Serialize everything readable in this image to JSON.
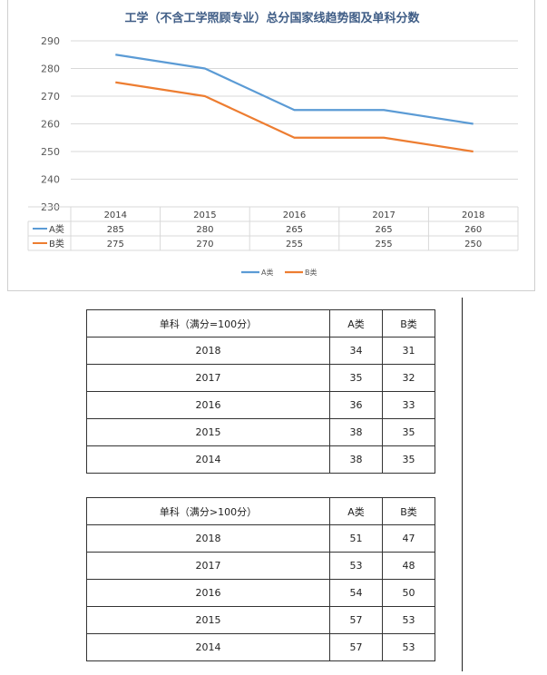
{
  "chart_data": {
    "type": "line",
    "title": "工学（不含工学照顾专业）总分国家线趋势图及单科分数",
    "categories": [
      "2014",
      "2015",
      "2016",
      "2017",
      "2018"
    ],
    "series": [
      {
        "name": "A类",
        "values": [
          285,
          280,
          265,
          265,
          260
        ],
        "color": "#5b9bd5"
      },
      {
        "name": "B类",
        "values": [
          275,
          270,
          255,
          255,
          250
        ],
        "color": "#ed7d31"
      }
    ],
    "ylim": [
      230,
      290
    ],
    "yticks": [
      "290",
      "280",
      "270",
      "260",
      "250",
      "240",
      "230"
    ],
    "grid": true,
    "legend": "bottom",
    "data_table": true
  },
  "table1": {
    "headers": [
      "单科（满分=100分）",
      "A类",
      "B类"
    ],
    "rows": [
      [
        "2018",
        "34",
        "31"
      ],
      [
        "2017",
        "35",
        "32"
      ],
      [
        "2016",
        "36",
        "33"
      ],
      [
        "2015",
        "38",
        "35"
      ],
      [
        "2014",
        "38",
        "35"
      ]
    ]
  },
  "table2": {
    "headers": [
      "单科（满分>100分）",
      "A类",
      "B类"
    ],
    "rows": [
      [
        "2018",
        "51",
        "47"
      ],
      [
        "2017",
        "53",
        "48"
      ],
      [
        "2016",
        "54",
        "50"
      ],
      [
        "2015",
        "57",
        "53"
      ],
      [
        "2014",
        "57",
        "53"
      ]
    ]
  }
}
